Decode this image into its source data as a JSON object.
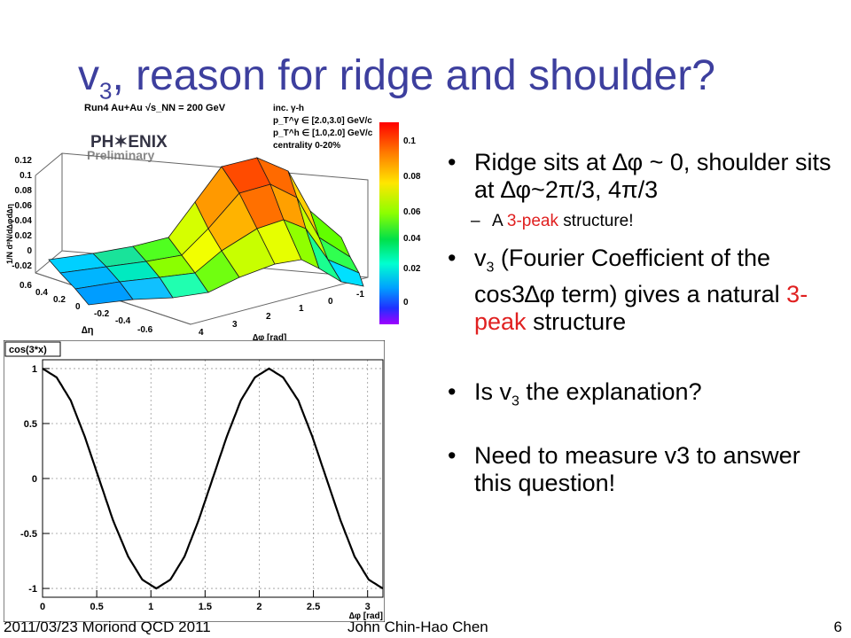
{
  "slide": {
    "title_main": "v",
    "title_sub": "3",
    "title_rest": ", reason for ridge and shoulder?",
    "bullets": {
      "b1": "Ridge sits at ∆φ ~ 0, shoulder sits at ∆φ~2π/3, 4π/3",
      "b1_sub_pre": "A ",
      "b1_sub_red": "3-peak",
      "b1_sub_post": " structure!",
      "b2_a": "v",
      "b2_sub": "3",
      "b2_b": " (Fourier Coefficient of the cos3∆φ term) gives a natural ",
      "b2_red": "3-peak",
      "b2_c": " structure",
      "b3_a": "Is v",
      "b3_sub": "3",
      "b3_b": " the explanation?",
      "b4": "Need to measure v3 to answer this question!"
    },
    "bullet_char": "•",
    "dash_char": "–",
    "footer": {
      "left": "2011/03/23 Moriond QCD 2011",
      "center": "John Chin-Hao Chen",
      "page": "6"
    }
  },
  "surface_plot": {
    "header": "Run4 Au+Au √s_NN = 200 GeV",
    "logo_text": "PH✶ENIX",
    "logo_sub": "Preliminary",
    "legend_lines": [
      "inc. γ-h",
      "p_T^γ ∈ [2.0,3.0] GeV/c",
      "p_T^h ∈ [1.0,2.0] GeV/c",
      "centrality 0-20%"
    ],
    "z_ticks": [
      "0.12",
      "0.1",
      "0.08",
      "0.06",
      "0.04",
      "0.02",
      "0",
      "-0.02"
    ],
    "eta_ticks": [
      "0.6",
      "0.4",
      "0.2",
      "0",
      "-0.2",
      "-0.4",
      "-0.6"
    ],
    "phi_ticks": [
      "4",
      "3",
      "2",
      "1",
      "0",
      "-1"
    ],
    "eta_label": "∆η",
    "phi_label": "∆φ [rad]",
    "z_label": "1/N d²N/d∆φd∆η",
    "colorbar_ticks": [
      "0.1",
      "0.08",
      "0.06",
      "0.04",
      "0.02",
      "0"
    ]
  },
  "chart_data": {
    "type": "line",
    "title": "cos(3*x)",
    "xlabel": "∆φ [rad]",
    "ylabel": "",
    "xlim": [
      0,
      3.14159
    ],
    "ylim": [
      -1.08,
      1.08
    ],
    "x_ticks": [
      "0",
      "0.5",
      "1",
      "1.5",
      "2",
      "2.5",
      "3"
    ],
    "y_ticks": [
      "1",
      "0.5",
      "0",
      "-0.5",
      "-1"
    ],
    "grid": true,
    "series": [
      {
        "x": [
          0,
          0.13,
          0.26,
          0.39,
          0.52,
          0.65,
          0.79,
          0.92,
          1.05,
          1.18,
          1.31,
          1.44,
          1.57,
          1.7,
          1.83,
          1.96,
          2.09,
          2.22,
          2.36,
          2.49,
          2.62,
          2.75,
          2.88,
          3.01,
          3.14
        ],
        "y": [
          1.0,
          0.92,
          0.71,
          0.38,
          0.0,
          -0.38,
          -0.71,
          -0.92,
          -1.0,
          -0.92,
          -0.71,
          -0.38,
          0.0,
          0.38,
          0.71,
          0.92,
          1.0,
          0.92,
          0.71,
          0.38,
          0.0,
          -0.38,
          -0.71,
          -0.92,
          -1.0
        ]
      }
    ]
  }
}
